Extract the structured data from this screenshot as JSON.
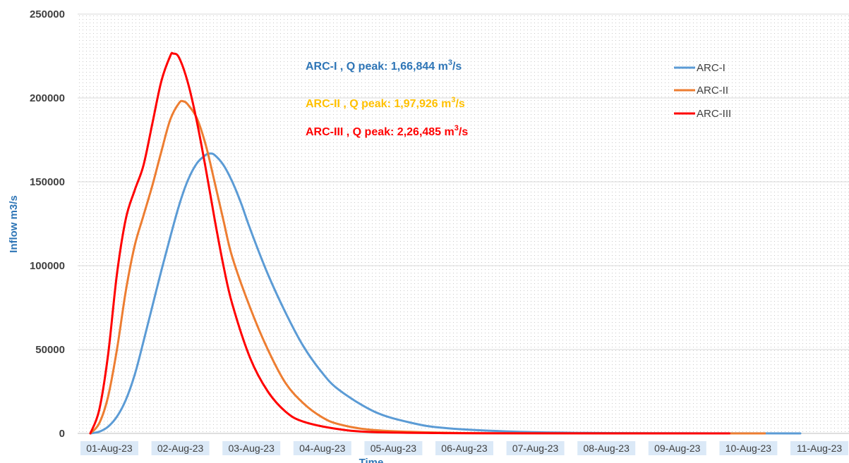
{
  "chart_data": {
    "type": "line",
    "title": "",
    "xlabel": "Time",
    "ylabel": "Inflow m3/s",
    "ylim": [
      0,
      250000
    ],
    "xlim": [
      "01-Aug-23",
      "11-Aug-23"
    ],
    "y_ticks": [
      "0",
      "50000",
      "100000",
      "150000",
      "200000",
      "250000"
    ],
    "x_ticks": [
      "01-Aug-23",
      "02-Aug-23",
      "03-Aug-23",
      "04-Aug-23",
      "05-Aug-23",
      "06-Aug-23",
      "07-Aug-23",
      "08-Aug-23",
      "09-Aug-23",
      "10-Aug-23",
      "11-Aug-23"
    ],
    "grid": true,
    "legend_position": "top-right",
    "annotations": [
      {
        "series": "ARC-I",
        "prefix": "ARC-I , Q peak: 1,66,844 m",
        "sup": "3",
        "suffix": "/s",
        "color": "#2e75b6"
      },
      {
        "series": "ARC-II",
        "prefix": "ARC-II , Q peak: 1,97,926 m",
        "sup": "3",
        "suffix": "/s",
        "color": "#ffc000"
      },
      {
        "series": "ARC-III",
        "prefix": "ARC-III , Q peak: 2,26,485 m",
        "sup": "3",
        "suffix": "/s",
        "color": "#ff0000"
      }
    ],
    "series": [
      {
        "name": "ARC-I",
        "color": "#5b9bd5",
        "points": [
          [
            "01-Aug-23 00:00",
            0
          ],
          [
            "01-Aug-23 03:00",
            1000
          ],
          [
            "01-Aug-23 06:00",
            4000
          ],
          [
            "01-Aug-23 09:00",
            10000
          ],
          [
            "01-Aug-23 12:00",
            20000
          ],
          [
            "01-Aug-23 15:00",
            35000
          ],
          [
            "01-Aug-23 18:00",
            55000
          ],
          [
            "01-Aug-23 21:00",
            76000
          ],
          [
            "02-Aug-23 00:00",
            97000
          ],
          [
            "02-Aug-23 03:00",
            117000
          ],
          [
            "02-Aug-23 06:00",
            136000
          ],
          [
            "02-Aug-23 09:00",
            151000
          ],
          [
            "02-Aug-23 12:00",
            161000
          ],
          [
            "02-Aug-23 15:00",
            166000
          ],
          [
            "02-Aug-23 16:30",
            166844
          ],
          [
            "02-Aug-23 18:00",
            166000
          ],
          [
            "02-Aug-23 21:00",
            160000
          ],
          [
            "03-Aug-23 00:00",
            150000
          ],
          [
            "03-Aug-23 03:00",
            137000
          ],
          [
            "03-Aug-23 06:00",
            122000
          ],
          [
            "03-Aug-23 12:00",
            95000
          ],
          [
            "03-Aug-23 18:00",
            72000
          ],
          [
            "04-Aug-23 00:00",
            52000
          ],
          [
            "04-Aug-23 06:00",
            37000
          ],
          [
            "04-Aug-23 12:00",
            26000
          ],
          [
            "05-Aug-23 00:00",
            13000
          ],
          [
            "05-Aug-23 12:00",
            6500
          ],
          [
            "06-Aug-23 00:00",
            3200
          ],
          [
            "07-Aug-23 00:00",
            1000
          ],
          [
            "08-Aug-23 00:00",
            300
          ],
          [
            "09-Aug-23 00:00",
            100
          ],
          [
            "11-Aug-23 00:00",
            0
          ]
        ]
      },
      {
        "name": "ARC-II",
        "color": "#ed7d31",
        "points": [
          [
            "01-Aug-23 00:00",
            0
          ],
          [
            "01-Aug-23 03:00",
            6000
          ],
          [
            "01-Aug-23 06:00",
            22000
          ],
          [
            "01-Aug-23 09:00",
            50000
          ],
          [
            "01-Aug-23 12:00",
            85000
          ],
          [
            "01-Aug-23 15:00",
            112000
          ],
          [
            "01-Aug-23 18:00",
            130000
          ],
          [
            "01-Aug-23 21:00",
            148000
          ],
          [
            "02-Aug-23 00:00",
            168000
          ],
          [
            "02-Aug-23 03:00",
            187000
          ],
          [
            "02-Aug-23 06:00",
            197000
          ],
          [
            "02-Aug-23 07:30",
            197926
          ],
          [
            "02-Aug-23 09:00",
            196000
          ],
          [
            "02-Aug-23 12:00",
            188000
          ],
          [
            "02-Aug-23 15:00",
            172000
          ],
          [
            "02-Aug-23 18:00",
            150000
          ],
          [
            "02-Aug-23 21:00",
            127000
          ],
          [
            "03-Aug-23 00:00",
            105000
          ],
          [
            "03-Aug-23 06:00",
            75000
          ],
          [
            "03-Aug-23 12:00",
            50000
          ],
          [
            "03-Aug-23 18:00",
            30000
          ],
          [
            "04-Aug-23 00:00",
            18000
          ],
          [
            "04-Aug-23 06:00",
            10000
          ],
          [
            "04-Aug-23 12:00",
            5500
          ],
          [
            "05-Aug-23 00:00",
            2000
          ],
          [
            "06-Aug-23 00:00",
            400
          ],
          [
            "07-Aug-23 00:00",
            100
          ],
          [
            "10-Aug-23 12:00",
            0
          ]
        ]
      },
      {
        "name": "ARC-III",
        "color": "#ff0000",
        "points": [
          [
            "01-Aug-23 00:00",
            0
          ],
          [
            "01-Aug-23 03:00",
            14000
          ],
          [
            "01-Aug-23 06:00",
            47000
          ],
          [
            "01-Aug-23 09:00",
            95000
          ],
          [
            "01-Aug-23 12:00",
            128000
          ],
          [
            "01-Aug-23 15:00",
            145000
          ],
          [
            "01-Aug-23 18:00",
            160000
          ],
          [
            "01-Aug-23 21:00",
            185000
          ],
          [
            "02-Aug-23 00:00",
            210000
          ],
          [
            "02-Aug-23 03:00",
            225000
          ],
          [
            "02-Aug-23 04:00",
            226485
          ],
          [
            "02-Aug-23 06:00",
            224000
          ],
          [
            "02-Aug-23 09:00",
            209000
          ],
          [
            "02-Aug-23 12:00",
            186000
          ],
          [
            "02-Aug-23 15:00",
            158000
          ],
          [
            "02-Aug-23 18:00",
            128000
          ],
          [
            "02-Aug-23 21:00",
            100000
          ],
          [
            "03-Aug-23 00:00",
            77000
          ],
          [
            "03-Aug-23 06:00",
            45000
          ],
          [
            "03-Aug-23 12:00",
            25000
          ],
          [
            "03-Aug-23 18:00",
            13000
          ],
          [
            "04-Aug-23 00:00",
            7000
          ],
          [
            "04-Aug-23 12:00",
            2500
          ],
          [
            "05-Aug-23 00:00",
            800
          ],
          [
            "06-Aug-23 00:00",
            150
          ],
          [
            "07-Aug-23 00:00",
            30
          ],
          [
            "10-Aug-23 00:00",
            0
          ]
        ]
      }
    ]
  }
}
